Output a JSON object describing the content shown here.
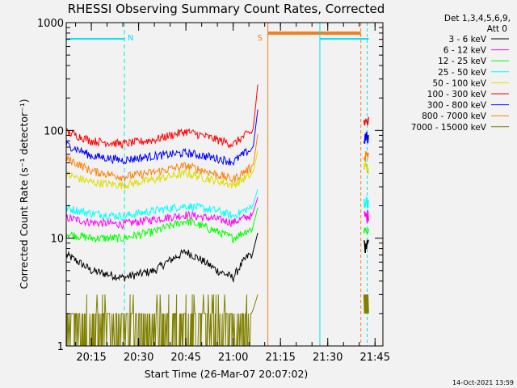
{
  "chart_data": {
    "type": "line",
    "title": "RHESSI Observing Summary Count Rates, Corrected",
    "xlabel": "Start Time (26-Mar-07 20:07:02)",
    "ylabel": "Corrected Count Rate (s⁻¹ detector⁻¹)",
    "y_scale": "log",
    "xlim": [
      "20:07:02",
      "21:47:30"
    ],
    "ylim": [
      1,
      1000
    ],
    "x_ticks": [
      "20:15",
      "20:30",
      "20:45",
      "21:00",
      "21:15",
      "21:30",
      "21:45"
    ],
    "y_ticks": [
      "1",
      "10",
      "100",
      "1000"
    ],
    "grid": false,
    "legend_position": "top-right",
    "legend_header": [
      "Det 1,3,4,5,6,9,",
      "Att 0"
    ],
    "footer_date": "14-Oct-2021 13:59",
    "flags": [
      {
        "label": "N",
        "start": "20:07:02",
        "end": "20:25:30",
        "marker_time": "20:25:30",
        "color": "#00e5ee"
      },
      {
        "label": "S",
        "start": "21:11:00",
        "end": "21:40:30",
        "marker_time": "21:11:00",
        "color": "#f08020"
      },
      {
        "label": "",
        "start": "21:27:30",
        "end": "21:43:00",
        "marker_time": "21:27:30",
        "color": "#00e5ee"
      }
    ],
    "event_lines": [
      {
        "time": "21:11:00",
        "color": "#f08020",
        "style": "solid"
      },
      {
        "time": "21:27:30",
        "color": "#00e5ee",
        "style": "solid"
      },
      {
        "time": "21:40:30",
        "color": "#f08020",
        "style": "dashed"
      },
      {
        "time": "21:42:30",
        "color": "#00e5ee",
        "style": "dashed"
      }
    ],
    "series": [
      {
        "name": "3 - 6 keV",
        "color": "#000000",
        "x": [
          "20:07",
          "20:15",
          "20:25",
          "20:35",
          "20:45",
          "20:55",
          "21:00",
          "21:05"
        ],
        "y": [
          7,
          5,
          4.3,
          5,
          7.5,
          5,
          4.3,
          7
        ]
      },
      {
        "name": "6 - 12 keV",
        "color": "#ff00ff",
        "x": [
          "20:07",
          "20:15",
          "20:25",
          "20:35",
          "20:45",
          "20:55",
          "21:00",
          "21:05"
        ],
        "y": [
          15.5,
          14,
          13.5,
          15,
          16.5,
          15,
          14,
          16
        ]
      },
      {
        "name": "12 - 25 keV",
        "color": "#00ff00",
        "x": [
          "20:07",
          "20:15",
          "20:25",
          "20:35",
          "20:45",
          "20:55",
          "21:00",
          "21:05"
        ],
        "y": [
          11,
          10,
          10,
          11.5,
          14.5,
          11.5,
          10,
          12
        ]
      },
      {
        "name": "25 - 50 keV",
        "color": "#00ffff",
        "x": [
          "20:07",
          "20:15",
          "20:25",
          "20:35",
          "20:45",
          "20:55",
          "21:00",
          "21:05"
        ],
        "y": [
          19,
          17,
          16,
          18,
          20,
          18,
          16,
          19
        ]
      },
      {
        "name": "50 - 100 keV",
        "color": "#dddd00",
        "x": [
          "20:07",
          "20:15",
          "20:25",
          "20:35",
          "20:45",
          "20:55",
          "21:00",
          "21:05"
        ],
        "y": [
          39,
          33,
          31,
          35,
          40,
          34,
          31,
          38
        ]
      },
      {
        "name": "100 - 300 keV",
        "color": "#ff0000",
        "x": [
          "20:07",
          "20:15",
          "20:25",
          "20:35",
          "20:45",
          "20:55",
          "21:00",
          "21:05"
        ],
        "y": [
          97,
          80,
          75,
          82,
          98,
          82,
          74,
          95
        ]
      },
      {
        "name": "300 - 800 keV",
        "color": "#0000ff",
        "x": [
          "20:07",
          "20:15",
          "20:25",
          "20:35",
          "20:45",
          "20:55",
          "21:00",
          "21:05"
        ],
        "y": [
          74,
          58,
          53,
          58,
          62,
          55,
          51,
          65
        ]
      },
      {
        "name": "800 - 7000 keV",
        "color": "#ff7f00",
        "x": [
          "20:07",
          "20:15",
          "20:25",
          "20:35",
          "20:45",
          "20:55",
          "21:00",
          "21:05"
        ],
        "y": [
          55,
          42,
          37,
          41,
          47,
          39,
          35,
          44
        ]
      },
      {
        "name": "7000 - 15000 keV",
        "color": "#808000",
        "x": [
          "20:07",
          "20:15",
          "20:25",
          "20:35",
          "20:45",
          "20:55",
          "21:00",
          "21:05"
        ],
        "y": [
          2,
          2,
          1.6,
          2,
          2.2,
          1.8,
          1.6,
          2
        ]
      }
    ],
    "late_segment": {
      "x_start": "21:41:30",
      "x_end": "21:43:00",
      "y": [
        8.5,
        16,
        12,
        22,
        46,
        120,
        85,
        60,
        3
      ]
    }
  }
}
